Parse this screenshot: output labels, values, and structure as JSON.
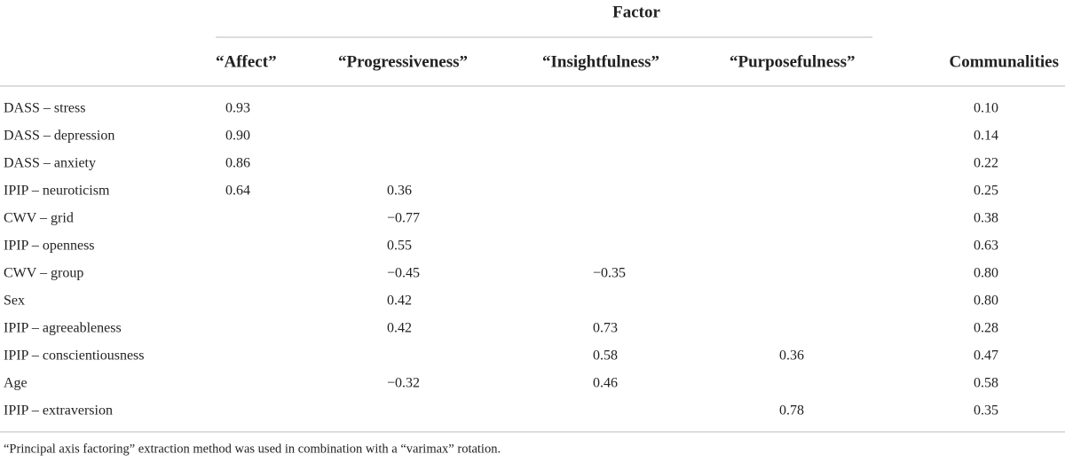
{
  "table": {
    "group_header": "Factor",
    "columns": [
      "“Affect”",
      "“Progressiveness”",
      "“Insightfulness”",
      "“Purposefulness”",
      "Communalities"
    ],
    "rows": [
      [
        "DASS – stress",
        "0.93",
        null,
        null,
        null,
        "0.10"
      ],
      [
        "DASS – depression",
        "0.90",
        null,
        null,
        null,
        "0.14"
      ],
      [
        "DASS – anxiety",
        "0.86",
        null,
        null,
        null,
        "0.22"
      ],
      [
        "IPIP – neuroticism",
        "0.64",
        "0.36",
        null,
        null,
        "0.25"
      ],
      [
        "CWV – grid",
        null,
        "−0.77",
        null,
        null,
        "0.38"
      ],
      [
        "IPIP – openness",
        null,
        "0.55",
        null,
        null,
        "0.63"
      ],
      [
        "CWV – group",
        null,
        "−0.45",
        "−0.35",
        null,
        "0.80"
      ],
      [
        "Sex",
        null,
        "0.42",
        null,
        null,
        "0.80"
      ],
      [
        "IPIP – agreeableness",
        null,
        "0.42",
        "0.73",
        null,
        "0.28"
      ],
      [
        "IPIP – conscientiousness",
        null,
        null,
        "0.58",
        "0.36",
        "0.47"
      ],
      [
        "Age",
        null,
        "−0.32",
        "0.46",
        null,
        "0.58"
      ],
      [
        "IPIP – extraversion",
        null,
        null,
        null,
        "0.78",
        "0.35"
      ]
    ],
    "footnote": "“Principal axis factoring” extraction method was used in combination with a “varimax” rotation."
  }
}
